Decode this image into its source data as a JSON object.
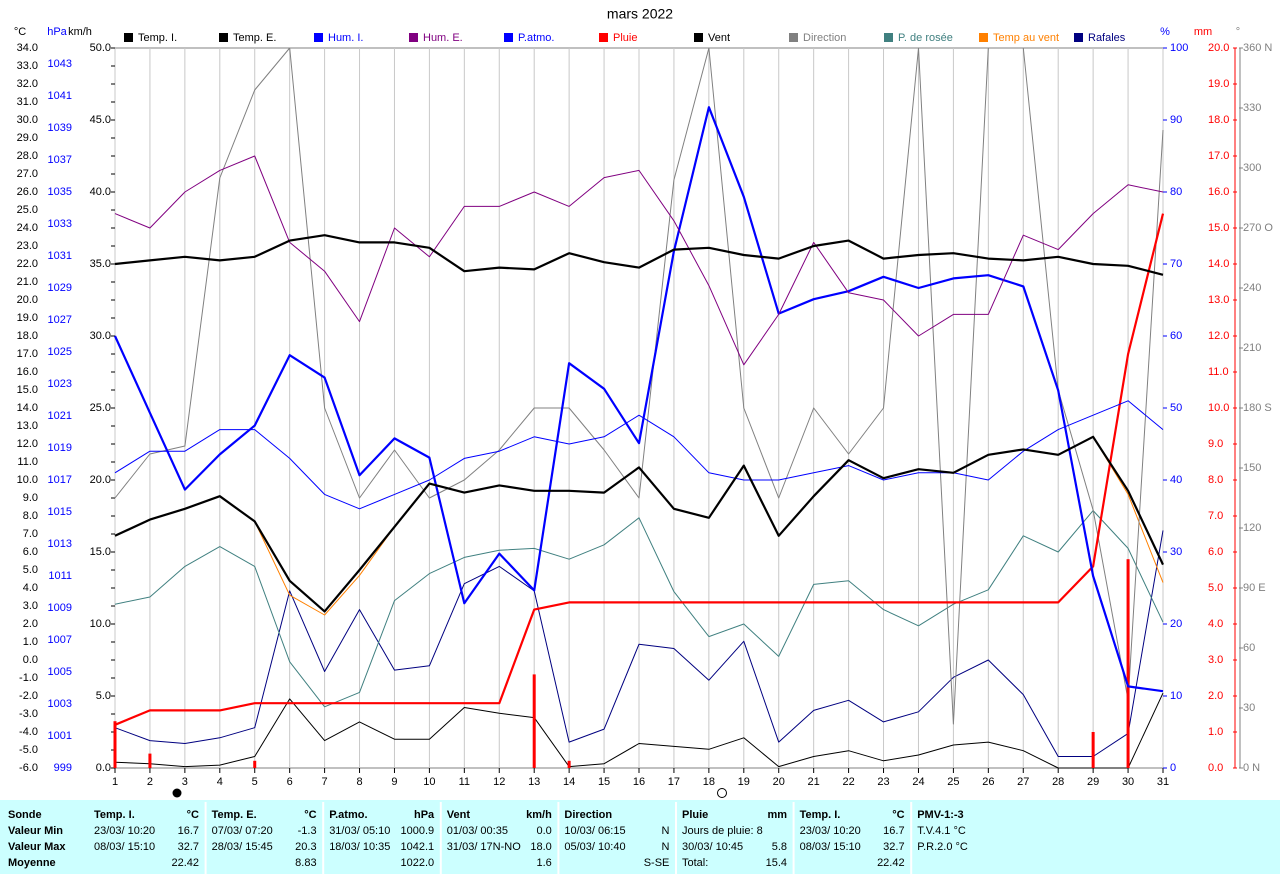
{
  "chart_data": {
    "type": "line",
    "title": "mars 2022",
    "x": [
      1,
      2,
      3,
      4,
      5,
      6,
      7,
      8,
      9,
      10,
      11,
      12,
      13,
      14,
      15,
      16,
      17,
      18,
      19,
      20,
      21,
      22,
      23,
      24,
      25,
      26,
      27,
      28,
      29,
      30,
      31
    ],
    "xlim": [
      1,
      31
    ],
    "xticks": [
      1,
      2,
      3,
      4,
      5,
      6,
      7,
      8,
      9,
      10,
      11,
      12,
      13,
      14,
      15,
      16,
      17,
      18,
      19,
      20,
      21,
      22,
      23,
      24,
      25,
      26,
      27,
      28,
      29,
      30,
      31
    ],
    "grid": true,
    "axes": [
      {
        "label": "°C",
        "color": "#000000",
        "lim": [
          -6,
          34
        ],
        "ticks": [
          {
            "value": -6,
            "label": "-6.0"
          },
          {
            "value": -5,
            "label": "-5.0"
          },
          {
            "value": -4,
            "label": "-4.0"
          },
          {
            "value": -3,
            "label": "-3.0"
          },
          {
            "value": -2,
            "label": "-2.0"
          },
          {
            "value": -1,
            "label": "-1.0"
          },
          {
            "value": 0,
            "label": "0.0"
          },
          {
            "value": 1,
            "label": "1.0"
          },
          {
            "value": 2,
            "label": "2.0"
          },
          {
            "value": 3,
            "label": "3.0"
          },
          {
            "value": 4,
            "label": "4.0"
          },
          {
            "value": 5,
            "label": "5.0"
          },
          {
            "value": 6,
            "label": "6.0"
          },
          {
            "value": 7,
            "label": "7.0"
          },
          {
            "value": 8,
            "label": "8.0"
          },
          {
            "value": 9,
            "label": "9.0"
          },
          {
            "value": 10,
            "label": "10.0"
          },
          {
            "value": 11,
            "label": "11.0"
          },
          {
            "value": 12,
            "label": "12.0"
          },
          {
            "value": 13,
            "label": "13.0"
          },
          {
            "value": 14,
            "label": "14.0"
          },
          {
            "value": 15,
            "label": "15.0"
          },
          {
            "value": 16,
            "label": "16.0"
          },
          {
            "value": 17,
            "label": "17.0"
          },
          {
            "value": 18,
            "label": "18.0"
          },
          {
            "value": 19,
            "label": "19.0"
          },
          {
            "value": 20,
            "label": "20.0"
          },
          {
            "value": 21,
            "label": "21.0"
          },
          {
            "value": 22,
            "label": "22.0"
          },
          {
            "value": 23,
            "label": "23.0"
          },
          {
            "value": 24,
            "label": "24.0"
          },
          {
            "value": 25,
            "label": "25.0"
          },
          {
            "value": 26,
            "label": "26.0"
          },
          {
            "value": 27,
            "label": "27.0"
          },
          {
            "value": 28,
            "label": "28.0"
          },
          {
            "value": 29,
            "label": "29.0"
          },
          {
            "value": 30,
            "label": "30.0"
          },
          {
            "value": 31,
            "label": "31.0"
          },
          {
            "value": 32,
            "label": "32.0"
          },
          {
            "value": 33,
            "label": "33.0"
          },
          {
            "value": 34,
            "label": "34.0"
          }
        ]
      },
      {
        "label": "hPa",
        "color": "#0000ff",
        "lim": [
          999,
          1044
        ],
        "ticks": [
          999,
          1001,
          1003,
          1005,
          1007,
          1009,
          1011,
          1013,
          1015,
          1017,
          1019,
          1021,
          1023,
          1025,
          1027,
          1029,
          1031,
          1033,
          1035,
          1037,
          1039,
          1041,
          1043
        ]
      },
      {
        "label": "km/h",
        "color": "#000000",
        "lim": [
          0,
          50
        ],
        "ticks": [
          {
            "value": 0,
            "label": "0.0"
          },
          {
            "value": 5,
            "label": "5.0"
          },
          {
            "value": 10,
            "label": "10.0"
          },
          {
            "value": 15,
            "label": "15.0"
          },
          {
            "value": 20,
            "label": "20.0"
          },
          {
            "value": 25,
            "label": "25.0"
          },
          {
            "value": 30,
            "label": "30.0"
          },
          {
            "value": 35,
            "label": "35.0"
          },
          {
            "value": 40,
            "label": "40.0"
          },
          {
            "value": 45,
            "label": "45.0"
          },
          {
            "value": 50,
            "label": "50.0"
          }
        ]
      },
      {
        "label": "%",
        "color": "#0000ff",
        "lim": [
          0,
          100
        ],
        "ticks": [
          0,
          10,
          20,
          30,
          40,
          50,
          60,
          70,
          80,
          90,
          100
        ]
      },
      {
        "label": "mm",
        "color": "#ff0000",
        "lim": [
          0,
          20
        ],
        "ticks": [
          {
            "value": 0,
            "label": "0.0"
          },
          {
            "value": 1,
            "label": "1.0"
          },
          {
            "value": 2,
            "label": "2.0"
          },
          {
            "value": 3,
            "label": "3.0"
          },
          {
            "value": 4,
            "label": "4.0"
          },
          {
            "value": 5,
            "label": "5.0"
          },
          {
            "value": 6,
            "label": "6.0"
          },
          {
            "value": 7,
            "label": "7.0"
          },
          {
            "value": 8,
            "label": "8.0"
          },
          {
            "value": 9,
            "label": "9.0"
          },
          {
            "value": 10,
            "label": "10.0"
          },
          {
            "value": 11,
            "label": "11.0"
          },
          {
            "value": 12,
            "label": "12.0"
          },
          {
            "value": 13,
            "label": "13.0"
          },
          {
            "value": 14,
            "label": "14.0"
          },
          {
            "value": 15,
            "label": "15.0"
          },
          {
            "value": 16,
            "label": "16.0"
          },
          {
            "value": 17,
            "label": "17.0"
          },
          {
            "value": 18,
            "label": "18.0"
          },
          {
            "value": 19,
            "label": "19.0"
          },
          {
            "value": 20,
            "label": "20.0"
          }
        ]
      },
      {
        "label": "°",
        "color": "#808080",
        "lim": [
          0,
          360
        ],
        "ticks": [
          {
            "value": 0,
            "label": "0 N"
          },
          30,
          60,
          {
            "value": 90,
            "label": "90 E"
          },
          120,
          150,
          {
            "value": 180,
            "label": "180 S"
          },
          210,
          240,
          {
            "value": 270,
            "label": "270 O"
          },
          300,
          330,
          {
            "value": 360,
            "label": "360 N"
          }
        ]
      }
    ],
    "series": [
      {
        "name": "Temp. I.",
        "color": "#000000",
        "axis": 0,
        "bold": true,
        "values": [
          22.0,
          22.2,
          22.4,
          22.2,
          22.4,
          23.3,
          23.6,
          23.2,
          23.2,
          22.9,
          21.6,
          21.8,
          21.7,
          22.6,
          22.1,
          21.8,
          22.8,
          22.9,
          22.5,
          22.3,
          23.0,
          23.3,
          22.3,
          22.5,
          22.6,
          22.3,
          22.2,
          22.4,
          22.0,
          21.9,
          21.4
        ]
      },
      {
        "name": "Temp. E.",
        "color": "#000000",
        "axis": 0,
        "bold": true,
        "values": [
          6.9,
          7.8,
          8.4,
          9.1,
          7.7,
          4.4,
          2.7,
          5.0,
          7.4,
          9.8,
          9.3,
          9.7,
          9.4,
          9.4,
          9.3,
          10.7,
          8.4,
          7.9,
          10.8,
          6.9,
          9.1,
          11.1,
          10.1,
          10.6,
          10.4,
          11.4,
          11.7,
          11.4,
          12.4,
          9.4,
          5.3
        ]
      },
      {
        "name": "Hum. I.",
        "color": "#0000ff",
        "axis": 3,
        "bold": false,
        "values": [
          41,
          44,
          44,
          47,
          47,
          43,
          38,
          36,
          38,
          40,
          43,
          44,
          46,
          45,
          46,
          49,
          46,
          41,
          40,
          40,
          41,
          42,
          40,
          41,
          41,
          40,
          44,
          47,
          49,
          51,
          47
        ]
      },
      {
        "name": "Hum. E.",
        "color": "#800080",
        "axis": 3,
        "bold": false,
        "values": [
          77,
          75,
          80,
          83,
          85,
          73,
          69,
          62,
          75,
          71,
          78,
          78,
          80,
          78,
          82,
          83,
          76,
          67,
          56,
          63,
          73,
          66,
          65,
          60,
          63,
          63,
          74,
          72,
          77,
          81,
          80
        ]
      },
      {
        "name": "P.atmo.",
        "color": "#0000ff",
        "axis": 1,
        "bold": true,
        "values": [
          1026.0,
          1021.2,
          1016.4,
          1018.6,
          1020.4,
          1024.8,
          1023.4,
          1017.3,
          1019.6,
          1018.4,
          1009.3,
          1012.4,
          1010.1,
          1024.3,
          1022.7,
          1019.3,
          1031.3,
          1040.3,
          1034.7,
          1027.4,
          1028.3,
          1028.8,
          1029.7,
          1029.0,
          1029.6,
          1029.8,
          1029.1,
          1022.6,
          1011.0,
          1004.1,
          1003.8
        ]
      },
      {
        "name": "Pluie",
        "color": "#ff0000",
        "axis": 4,
        "bold": true,
        "values": [
          1.2,
          1.6,
          1.6,
          1.6,
          1.8,
          1.8,
          1.8,
          1.8,
          1.8,
          1.8,
          1.8,
          1.8,
          4.4,
          4.6,
          4.6,
          4.6,
          4.6,
          4.6,
          4.6,
          4.6,
          4.6,
          4.6,
          4.6,
          4.6,
          4.6,
          4.6,
          4.6,
          4.6,
          5.6,
          11.5,
          15.4
        ],
        "bars": [
          1.3,
          0.4,
          0,
          0,
          0.2,
          0,
          0,
          0,
          0,
          0,
          0,
          0,
          2.6,
          0.2,
          0,
          0,
          0,
          0,
          0,
          0,
          0,
          0,
          0,
          0,
          0,
          0,
          0,
          0,
          1.0,
          5.8,
          0
        ]
      },
      {
        "name": "Vent",
        "color": "#000000",
        "axis": 2,
        "bold": false,
        "values": [
          0.4,
          0.3,
          0.1,
          0.2,
          0.8,
          4.8,
          1.9,
          3.2,
          2.0,
          2.0,
          4.2,
          3.8,
          3.5,
          0.1,
          0.3,
          1.7,
          1.5,
          1.3,
          2.1,
          0.1,
          0.8,
          1.2,
          0.5,
          0.9,
          1.6,
          1.8,
          1.2,
          0.0,
          0.0,
          0.0,
          5.2
        ]
      },
      {
        "name": "Direction",
        "color": "#808080",
        "axis": 5,
        "bold": false,
        "values": [
          135,
          157,
          161,
          295,
          339,
          360,
          180,
          135,
          159,
          135,
          144,
          159,
          180,
          180,
          159,
          135,
          294,
          360,
          180,
          135,
          180,
          157,
          180,
          360,
          22,
          360,
          360,
          189,
          129,
          34,
          319
        ]
      },
      {
        "name": "P. de rosée",
        "color": "#408080",
        "axis": 0,
        "bold": false,
        "values": [
          3.1,
          3.5,
          5.2,
          6.3,
          5.2,
          -0.1,
          -2.6,
          -1.8,
          3.3,
          4.8,
          5.7,
          6.1,
          6.2,
          5.6,
          6.4,
          7.9,
          3.8,
          1.3,
          2.0,
          0.2,
          4.2,
          4.4,
          2.8,
          1.9,
          3.1,
          3.9,
          6.9,
          6.0,
          8.3,
          6.2,
          2.1
        ]
      },
      {
        "name": "Temp au vent",
        "color": "#ff8000",
        "axis": 0,
        "bold": false,
        "values": [
          6.9,
          7.8,
          8.4,
          9.1,
          7.7,
          3.6,
          2.5,
          4.7,
          7.4,
          9.8,
          9.3,
          9.7,
          9.4,
          9.4,
          9.3,
          10.7,
          8.4,
          7.9,
          10.8,
          6.9,
          9.1,
          11.1,
          10.1,
          10.6,
          10.4,
          11.4,
          11.7,
          11.4,
          12.4,
          9.2,
          4.3
        ]
      },
      {
        "name": "Rafales",
        "color": "#000080",
        "axis": 2,
        "bold": false,
        "values": [
          2.8,
          1.9,
          1.7,
          2.1,
          2.8,
          12.3,
          6.7,
          11.0,
          6.8,
          7.1,
          12.8,
          14.0,
          12.3,
          1.8,
          2.7,
          8.6,
          8.3,
          6.1,
          8.8,
          1.8,
          4.0,
          4.7,
          3.2,
          3.9,
          6.3,
          7.5,
          5.1,
          0.8,
          0.8,
          2.4,
          16.5
        ]
      }
    ]
  },
  "stats": {
    "row_labels": [
      "Sonde",
      "Valeur Min",
      "Valeur Max",
      "Moyenne"
    ],
    "columns": [
      [
        {
          "left": "Temp. I.",
          "right": "°C"
        },
        {
          "left": "23/03/ 10:20",
          "right": "16.7"
        },
        {
          "left": "08/03/ 15:10",
          "right": "32.7"
        },
        {
          "right": "22.42"
        }
      ],
      [
        {
          "left": "Temp. E.",
          "right": "°C"
        },
        {
          "left": "07/03/ 07:20",
          "right": "-1.3"
        },
        {
          "left": "28/03/ 15:45",
          "right": "20.3"
        },
        {
          "right": "8.83"
        }
      ],
      [
        {
          "left": "P.atmo.",
          "right": "hPa"
        },
        {
          "left": "31/03/ 05:10",
          "right": "1000.9"
        },
        {
          "left": "18/03/ 10:35",
          "right": "1042.1"
        },
        {
          "right": "1022.0"
        }
      ],
      [
        {
          "left": "Vent",
          "right": "km/h"
        },
        {
          "left": "01/03/ 00:35",
          "right": "0.0"
        },
        {
          "left": "31/03/ 17N-NO",
          "right": "18.0"
        },
        {
          "right": "1.6"
        }
      ],
      [
        {
          "left": "Direction"
        },
        {
          "left": "10/03/ 06:15",
          "right": "N"
        },
        {
          "left": "05/03/ 10:40",
          "right": "N"
        },
        {
          "right": "S-SE"
        }
      ],
      [
        {
          "left": "Pluie",
          "right": "mm"
        },
        {
          "left": "Jours de pluie: 8"
        },
        {
          "left": "30/03/ 10:45",
          "right": "5.8"
        },
        {
          "left": "Total:",
          "right": "15.4"
        }
      ],
      [
        {
          "left": "Temp. I.",
          "right": "°C"
        },
        {
          "left": "23/03/ 10:20",
          "right": "16.7"
        },
        {
          "left": "08/03/ 15:10",
          "right": "32.7"
        },
        {
          "right": "22.42"
        }
      ],
      [
        {
          "left": "PMV-1:-3"
        },
        {
          "left": "T.V.4.1 °C"
        },
        {
          "left": "P.R.2.0 °C"
        }
      ]
    ]
  }
}
